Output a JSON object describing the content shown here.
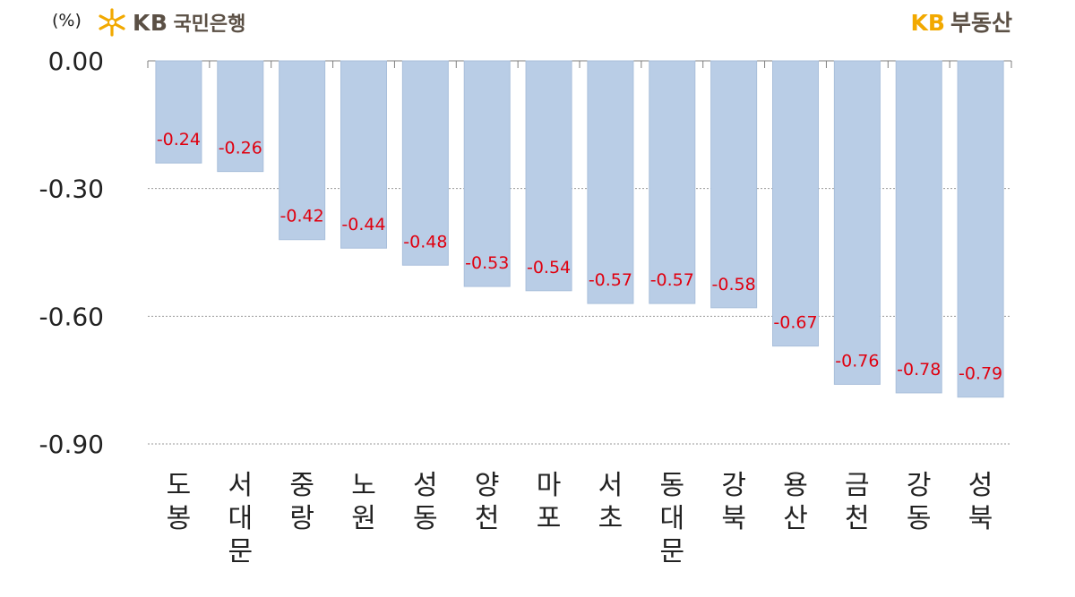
{
  "header": {
    "unit": "(%)",
    "logo_left_kb": "KB",
    "logo_left_bank": "국민은행",
    "logo_right_kb": "KB",
    "logo_right_brand": "부동산"
  },
  "colors": {
    "bar": "#b9cde6",
    "bar_border": "#a9bfdb",
    "value_label": "#e0000f",
    "logo_gold": "#f2a900",
    "logo_brown": "#5b5045"
  },
  "icons": {
    "logo": "kb-star-icon"
  },
  "chart_data": {
    "type": "bar",
    "title": "",
    "xlabel": "",
    "ylabel": "(%)",
    "ylim": [
      -0.9,
      0.0
    ],
    "yticks": [
      0.0,
      -0.3,
      -0.6,
      -0.9
    ],
    "ytick_labels": [
      "0.00",
      "-0.30",
      "-0.60",
      "-0.90"
    ],
    "grid": true,
    "categories": [
      "도봉",
      "서대문",
      "중랑",
      "노원",
      "성동",
      "양천",
      "마포",
      "서초",
      "동대문",
      "강북",
      "용산",
      "금천",
      "강동",
      "성북"
    ],
    "values": [
      -0.24,
      -0.26,
      -0.42,
      -0.44,
      -0.48,
      -0.53,
      -0.54,
      -0.57,
      -0.57,
      -0.58,
      -0.67,
      -0.76,
      -0.78,
      -0.79
    ],
    "value_labels": [
      "-0.24",
      "-0.26",
      "-0.42",
      "-0.44",
      "-0.48",
      "-0.53",
      "-0.54",
      "-0.57",
      "-0.57",
      "-0.58",
      "-0.67",
      "-0.76",
      "-0.78",
      "-0.79"
    ]
  }
}
